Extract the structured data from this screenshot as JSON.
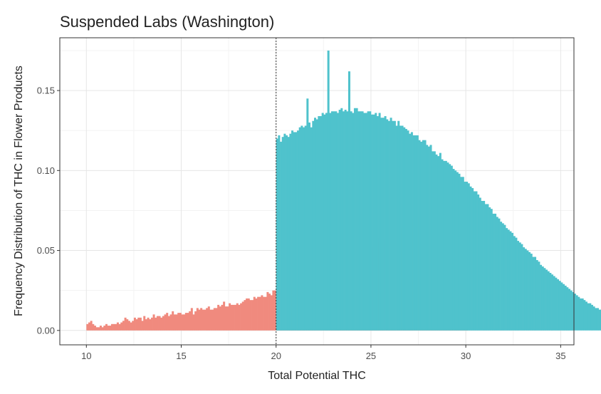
{
  "chart_data": {
    "type": "bar",
    "title": "Suspended Labs (Washington)",
    "xlabel": "Total Potential THC",
    "ylabel": "Frequency Distribution of THC in Flower Products",
    "xlim": [
      8.6,
      35.7
    ],
    "ylim": [
      -0.009,
      0.183
    ],
    "x_ticks": [
      10,
      15,
      20,
      25,
      30,
      35
    ],
    "x_tick_labels": [
      "10",
      "15",
      "20",
      "25",
      "30",
      "35"
    ],
    "y_ticks": [
      0.0,
      0.05,
      0.1,
      0.15
    ],
    "y_tick_labels": [
      "0.00",
      "0.05",
      "0.10",
      "0.15"
    ],
    "grid": true,
    "cutoff_line": 20,
    "bin_width": 0.1,
    "series": [
      {
        "color": "#F08A7E",
        "x_start": 10.0,
        "values": [
          0.004,
          0.005,
          0.006,
          0.004,
          0.003,
          0.002,
          0.002,
          0.003,
          0.002,
          0.003,
          0.004,
          0.003,
          0.003,
          0.004,
          0.004,
          0.004,
          0.005,
          0.004,
          0.005,
          0.006,
          0.008,
          0.007,
          0.006,
          0.005,
          0.006,
          0.008,
          0.007,
          0.008,
          0.008,
          0.006,
          0.009,
          0.007,
          0.008,
          0.007,
          0.008,
          0.01,
          0.008,
          0.009,
          0.009,
          0.008,
          0.009,
          0.01,
          0.011,
          0.009,
          0.01,
          0.012,
          0.01,
          0.01,
          0.011,
          0.011,
          0.01,
          0.01,
          0.011,
          0.011,
          0.012,
          0.014,
          0.01,
          0.012,
          0.014,
          0.013,
          0.014,
          0.013,
          0.013,
          0.014,
          0.015,
          0.013,
          0.013,
          0.014,
          0.014,
          0.016,
          0.015,
          0.016,
          0.018,
          0.015,
          0.015,
          0.017,
          0.016,
          0.016,
          0.016,
          0.017,
          0.016,
          0.017,
          0.018,
          0.019,
          0.02,
          0.02,
          0.019,
          0.019,
          0.021,
          0.02,
          0.021,
          0.021,
          0.022,
          0.021,
          0.021,
          0.024,
          0.023,
          0.022,
          0.025,
          0.025,
          0.025,
          0.025,
          0.026,
          0.026,
          0.026,
          0.026,
          0.029,
          0.026,
          0.027,
          0.028,
          0.031,
          0.029,
          0.03,
          0.029,
          0.029,
          0.032,
          0.031,
          0.031,
          0.033,
          0.032,
          0.033,
          0.035,
          0.034,
          0.034,
          0.038,
          0.035,
          0.034,
          0.038,
          0.038,
          0.036,
          0.038,
          0.041,
          0.039,
          0.04,
          0.041,
          0.04,
          0.043,
          0.042,
          0.044,
          0.044,
          0.046,
          0.044,
          0.046,
          0.047,
          0.047,
          0.048,
          0.048,
          0.052,
          0.05,
          0.053,
          0.052,
          0.052,
          0.053,
          0.055,
          0.058,
          0.056,
          0.057,
          0.058,
          0.058,
          0.059,
          0.06,
          0.062,
          0.061,
          0.063,
          0.064,
          0.064,
          0.066,
          0.067,
          0.066,
          0.069,
          0.069,
          0.068,
          0.07,
          0.07,
          0.072,
          0.071,
          0.069,
          0.072,
          0.07,
          0.072,
          0.073,
          0.072,
          0.074,
          0.073,
          0.072,
          0.074,
          0.074,
          0.074,
          0.074,
          0.074,
          0.072,
          0.075,
          0.073,
          0.072,
          0.072,
          0.074,
          0.073,
          0.075,
          0.074,
          0.073,
          0.072
        ]
      },
      {
        "color": "#4FC2CC",
        "x_start": 20.0,
        "values": [
          0.12,
          0.122,
          0.118,
          0.121,
          0.123,
          0.122,
          0.121,
          0.123,
          0.125,
          0.124,
          0.124,
          0.125,
          0.127,
          0.128,
          0.127,
          0.128,
          0.145,
          0.13,
          0.127,
          0.131,
          0.133,
          0.132,
          0.134,
          0.134,
          0.136,
          0.135,
          0.136,
          0.175,
          0.136,
          0.137,
          0.137,
          0.137,
          0.136,
          0.138,
          0.139,
          0.137,
          0.138,
          0.137,
          0.162,
          0.137,
          0.136,
          0.139,
          0.139,
          0.137,
          0.137,
          0.137,
          0.136,
          0.136,
          0.137,
          0.137,
          0.135,
          0.135,
          0.136,
          0.134,
          0.136,
          0.133,
          0.133,
          0.134,
          0.132,
          0.131,
          0.133,
          0.131,
          0.131,
          0.128,
          0.131,
          0.128,
          0.128,
          0.127,
          0.126,
          0.125,
          0.123,
          0.124,
          0.122,
          0.122,
          0.122,
          0.119,
          0.118,
          0.119,
          0.119,
          0.116,
          0.115,
          0.116,
          0.112,
          0.112,
          0.11,
          0.109,
          0.111,
          0.107,
          0.106,
          0.106,
          0.105,
          0.104,
          0.103,
          0.101,
          0.1,
          0.099,
          0.098,
          0.096,
          0.096,
          0.093,
          0.093,
          0.092,
          0.09,
          0.089,
          0.087,
          0.087,
          0.085,
          0.083,
          0.081,
          0.081,
          0.079,
          0.079,
          0.077,
          0.076,
          0.073,
          0.073,
          0.071,
          0.07,
          0.068,
          0.067,
          0.066,
          0.064,
          0.063,
          0.062,
          0.061,
          0.059,
          0.058,
          0.056,
          0.055,
          0.054,
          0.052,
          0.051,
          0.05,
          0.049,
          0.048,
          0.046,
          0.046,
          0.044,
          0.043,
          0.041,
          0.04,
          0.039,
          0.038,
          0.037,
          0.036,
          0.035,
          0.034,
          0.033,
          0.032,
          0.031,
          0.03,
          0.029,
          0.028,
          0.027,
          0.026,
          0.025,
          0.024,
          0.023,
          0.022,
          0.021,
          0.02,
          0.02,
          0.019,
          0.018,
          0.017,
          0.017,
          0.016,
          0.015,
          0.014,
          0.014,
          0.013,
          0.013,
          0.012,
          0.011,
          0.011,
          0.01,
          0.01,
          0.009,
          0.009,
          0.008,
          0.008,
          0.007,
          0.007,
          0.007,
          0.006,
          0.006,
          0.006,
          0.005,
          0.005,
          0.005,
          0.004,
          0.004,
          0.004,
          0.004,
          0.003,
          0.003,
          0.003,
          0.003,
          0.003,
          0.002,
          0.002,
          0.002,
          0.002,
          0.002,
          0.002,
          0.002,
          0.002,
          0.002,
          0.001,
          0.001,
          0.001,
          0.001,
          0.001,
          0.001,
          0.001,
          0.001,
          0.001,
          0.001,
          0.001,
          0.001,
          0.001,
          0.001,
          0.001,
          0.001,
          0.001,
          0.0,
          0.0,
          0.0,
          0.0,
          0.0,
          0.0,
          0.0,
          0.0,
          0.0,
          0.0,
          0.0,
          0.0,
          0.0,
          0.0,
          0.0,
          0.0,
          0.0,
          0.0,
          0.0,
          0.0,
          0.0,
          0.0,
          0.0,
          0.0,
          0.0,
          0.0,
          0.0,
          0.0,
          0.0,
          0.0,
          0.0,
          0.0,
          0.0,
          0.0,
          0.0,
          0.0,
          0.0,
          0.0,
          0.0,
          0.0,
          0.0,
          0.0,
          0.0,
          0.0,
          0.0,
          0.0,
          0.0,
          0.0,
          0.0,
          0.0,
          0.0,
          0.0,
          0.0,
          0.0,
          0.0,
          0.0,
          0.0,
          0.0,
          0.0,
          0.0,
          0.0,
          0.0,
          0.0,
          0.0,
          0.0,
          0.0,
          0.0,
          0.0,
          0.0,
          0.0,
          0.0,
          0.0,
          0.0,
          0.0,
          0.0,
          0.0,
          0.0,
          0.0,
          0.0,
          0.0,
          0.0,
          0.0,
          0.0,
          0.0,
          0.0,
          0.0,
          0.0,
          0.0,
          0.0,
          0.0,
          0.0,
          0.0,
          0.0,
          0.0,
          0.0,
          0.0,
          0.0,
          0.0,
          0.0,
          0.0,
          0.0,
          0.0,
          0.0,
          0.0,
          0.0,
          0.0,
          0.0,
          0.0,
          0.0,
          0.0,
          0.0,
          0.0,
          0.0,
          0.0,
          0.0,
          0.0,
          0.0,
          0.0,
          0.0,
          0.0,
          0.0,
          0.0,
          0.0,
          0.0,
          0.0
        ]
      }
    ]
  }
}
